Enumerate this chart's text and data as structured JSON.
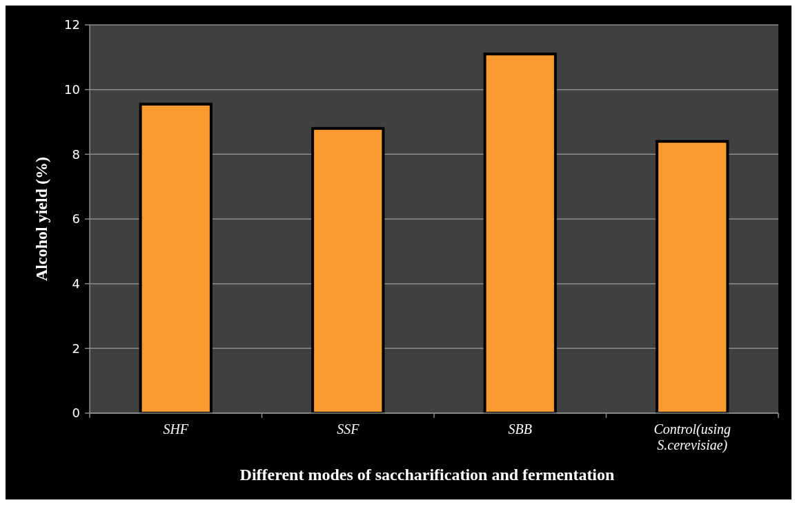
{
  "chart_data": {
    "type": "bar",
    "xlabel": "Different modes of saccharification and fermentation",
    "ylabel": "Alcohol yield (%)",
    "categories": [
      "SHF",
      "SSF",
      "SBB",
      "Control(using S.cerevisiae)"
    ],
    "values": [
      9.55,
      8.8,
      11.1,
      8.4
    ],
    "color": "#f99a30",
    "ylim": [
      0,
      12
    ],
    "yticks": [
      0,
      2,
      4,
      6,
      8,
      10,
      12
    ],
    "grid": "y"
  }
}
